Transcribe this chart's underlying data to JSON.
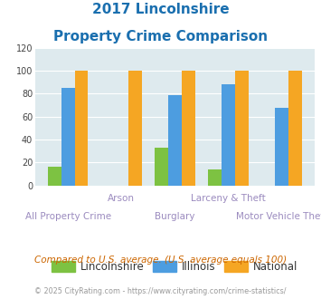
{
  "title_line1": "2017 Lincolnshire",
  "title_line2": "Property Crime Comparison",
  "categories": [
    "All Property Crime",
    "Arson",
    "Burglary",
    "Larceny & Theft",
    "Motor Vehicle Theft"
  ],
  "x_labels_top": [
    "",
    "Arson",
    "",
    "Larceny & Theft",
    ""
  ],
  "x_labels_bottom": [
    "All Property Crime",
    "",
    "Burglary",
    "",
    "Motor Vehicle Theft"
  ],
  "lincolnshire": [
    16,
    0,
    33,
    14,
    0
  ],
  "illinois": [
    85,
    0,
    79,
    88,
    68
  ],
  "national": [
    100,
    100,
    100,
    100,
    100
  ],
  "bar_width": 0.25,
  "color_lincolnshire": "#7dc242",
  "color_illinois": "#4d9de0",
  "color_national": "#f5a623",
  "ylim": [
    0,
    120
  ],
  "yticks": [
    0,
    20,
    40,
    60,
    80,
    100,
    120
  ],
  "background_color": "#deeaee",
  "title_color": "#1a6faf",
  "xlabel_color": "#9b8bbf",
  "footer_text": "Compared to U.S. average. (U.S. average equals 100)",
  "copyright_text": "© 2025 CityRating.com - https://www.cityrating.com/crime-statistics/",
  "footer_color": "#cc6600",
  "copyright_color": "#999999",
  "legend_labels": [
    "Lincolnshire",
    "Illinois",
    "National"
  ]
}
